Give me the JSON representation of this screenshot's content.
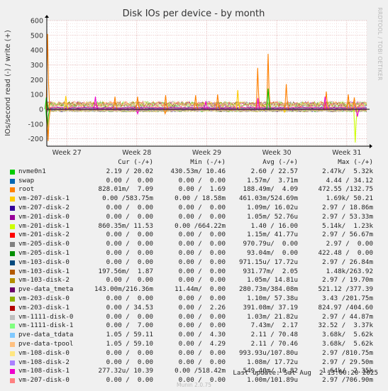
{
  "chart_data": {
    "type": "line",
    "title": "Disk IOs per device - by month",
    "ylabel": "IOs/second read (-) / write (+)",
    "ylim": [
      -250,
      600
    ],
    "yticks": [
      -200,
      -100,
      0,
      100,
      200,
      300,
      400,
      500,
      600
    ],
    "xlim": [
      "2025-07-01",
      "2025-08-02"
    ],
    "xticks": [
      {
        "date": "2025-07-03",
        "label": "Week 27"
      },
      {
        "date": "2025-07-10",
        "label": "Week 28"
      },
      {
        "date": "2025-07-17",
        "label": "Week 29"
      },
      {
        "date": "2025-07-24",
        "label": "Week 30"
      },
      {
        "date": "2025-07-31",
        "label": "Week 31"
      }
    ],
    "grid": true,
    "baseline_colors": [
      "#00cc00",
      "#0066b3",
      "#ff8000",
      "#ffcc00",
      "#330099",
      "#990099",
      "#ccff00",
      "#ff0000",
      "#808080",
      "#008f00",
      "#00487d",
      "#b35a00",
      "#b38f00",
      "#6b006b",
      "#8fb300",
      "#b30000",
      "#bebebe",
      "#80ff80",
      "#80c9ff",
      "#ffc080",
      "#ffe680",
      "#aa80ff",
      "#ee00cc",
      "#ff8080"
    ],
    "spikes": [
      {
        "date": "2025-07-01",
        "value": 510,
        "color": "#ff8000"
      },
      {
        "date": "2025-07-01",
        "value": 80,
        "color": "#00cc00"
      },
      {
        "date": "2025-07-01",
        "value": -150,
        "color": "#00cc00"
      },
      {
        "date": "2025-07-01",
        "value": -215,
        "color": "#ff8000"
      },
      {
        "date": "2025-07-03",
        "value": 90,
        "color": "#ffcc00"
      },
      {
        "date": "2025-07-06",
        "value": 85,
        "color": "#ee00cc"
      },
      {
        "date": "2025-07-08",
        "value": 85,
        "color": "#ff8000"
      },
      {
        "date": "2025-07-10",
        "value": 85,
        "color": "#ff8000"
      },
      {
        "date": "2025-07-10",
        "value": -30,
        "color": "#ee00cc"
      },
      {
        "date": "2025-07-13",
        "value": 95,
        "color": "#ff8000"
      },
      {
        "date": "2025-07-13",
        "value": -30,
        "color": "#ff8000"
      },
      {
        "date": "2025-07-16",
        "value": 95,
        "color": "#ff8000"
      },
      {
        "date": "2025-07-17",
        "value": 55,
        "color": "#ee00cc"
      },
      {
        "date": "2025-07-18",
        "value": 100,
        "color": "#ff8000"
      },
      {
        "date": "2025-07-20",
        "value": 130,
        "color": "#ffcc00"
      },
      {
        "date": "2025-07-22",
        "value": 280,
        "color": "#ff8000"
      },
      {
        "date": "2025-07-22",
        "value": 75,
        "color": "#ee00cc"
      },
      {
        "date": "2025-07-23",
        "value": 375,
        "color": "#ff8000"
      },
      {
        "date": "2025-07-23",
        "value": 140,
        "color": "#00cc00"
      },
      {
        "date": "2025-07-25",
        "value": 170,
        "color": "#ff8000"
      },
      {
        "date": "2025-07-25",
        "value": -20,
        "color": "#ffcc00"
      },
      {
        "date": "2025-07-29",
        "value": 120,
        "color": "#ff8000"
      },
      {
        "date": "2025-07-29",
        "value": 85,
        "color": "#ee00cc"
      },
      {
        "date": "2025-07-31",
        "value": 100,
        "color": "#ff8000"
      },
      {
        "date": "2025-08-01",
        "value": 80,
        "color": "#ff8000"
      },
      {
        "date": "2025-08-01",
        "value": -225,
        "color": "#ccff00"
      },
      {
        "date": "2025-08-01",
        "value": -50,
        "color": "#ee00cc"
      }
    ]
  },
  "side_text": "RRDTOOL / TOBI OETIKER",
  "legend": {
    "headers": {
      "cur": "Cur (-/+)",
      "min": "Min (-/+)",
      "avg": "Avg (-/+)",
      "max": "Max (-/+)"
    },
    "rows": [
      {
        "name": "nvme0n1",
        "color": "#00cc00",
        "cur": "2.19 / 20.02",
        "min": "430.53m/ 10.46",
        "avg": "2.60 / 22.57",
        "max": "2.47k/  5.32k"
      },
      {
        "name": "swap",
        "color": "#0066b3",
        "cur": "0.00 /  0.00",
        "min": "0.00 /  0.00",
        "avg": "1.57m/  3.71m",
        "max": "4.44 / 34.12"
      },
      {
        "name": "root",
        "color": "#ff8000",
        "cur": "828.01m/  7.09",
        "min": "0.00 /  1.69",
        "avg": "188.49m/  4.09",
        "max": "472.55 /132.75"
      },
      {
        "name": "vm-207-disk-1",
        "color": "#ffcc00",
        "cur": "0.00 /583.75m",
        "min": "0.00 / 18.58m",
        "avg": "461.03m/524.69m",
        "max": "1.69k/ 50.21"
      },
      {
        "name": "vm-207-disk-2",
        "color": "#330099",
        "cur": "0.00 /  0.00",
        "min": "0.00 /  0.00",
        "avg": "1.09m/ 16.02u",
        "max": "2.97 / 18.86m"
      },
      {
        "name": "vm-201-disk-0",
        "color": "#990099",
        "cur": "0.00 /  0.00",
        "min": "0.00 /  0.00",
        "avg": "1.05m/ 52.76u",
        "max": "2.97 / 53.33m"
      },
      {
        "name": "vm-201-disk-1",
        "color": "#ccff00",
        "cur": "860.35m/ 11.53",
        "min": "0.00 /664.22m",
        "avg": "1.40 / 16.00",
        "max": "5.14k/  1.23k"
      },
      {
        "name": "vm-201-disk-2",
        "color": "#ff0000",
        "cur": "0.00 /  0.00",
        "min": "0.00 /  0.00",
        "avg": "1.15m/ 41.77u",
        "max": "2.97 / 56.67m"
      },
      {
        "name": "vm-205-disk-0",
        "color": "#808080",
        "cur": "0.00 /  0.00",
        "min": "0.00 /  0.00",
        "avg": "970.79u/  0.00",
        "max": "2.97 /  0.00"
      },
      {
        "name": "vm-205-disk-1",
        "color": "#008f00",
        "cur": "0.00 /  0.00",
        "min": "0.00 /  0.00",
        "avg": "93.04m/  0.00",
        "max": "422.48 /  0.00"
      },
      {
        "name": "vm-103-disk-0",
        "color": "#00487d",
        "cur": "0.00 /  0.00",
        "min": "0.00 /  0.00",
        "avg": "971.15u/ 17.72u",
        "max": "2.97 / 26.84m"
      },
      {
        "name": "vm-103-disk-1",
        "color": "#b35a00",
        "cur": "197.56m/  1.87",
        "min": "0.00 /  0.00",
        "avg": "931.77m/  2.05",
        "max": "1.48k/263.92"
      },
      {
        "name": "vm-103-disk-2",
        "color": "#b38f00",
        "cur": "0.00 /  0.00",
        "min": "0.00 /  0.00",
        "avg": "1.05m/ 14.81u",
        "max": "2.97 / 19.70m"
      },
      {
        "name": "pve-data_tmeta",
        "color": "#6b006b",
        "cur": "143.00m/216.36m",
        "min": "11.44m/  0.00",
        "avg": "280.73m/384.08m",
        "max": "521.12 /377.39"
      },
      {
        "name": "vm-203-disk-0",
        "color": "#8fb300",
        "cur": "0.00 /  0.00",
        "min": "0.00 /  0.00",
        "avg": "1.10m/ 57.38u",
        "max": "3.43 /201.75m"
      },
      {
        "name": "vm-203-disk-1",
        "color": "#b30000",
        "cur": "0.00 / 34.53",
        "min": "0.00 /  2.26",
        "avg": "391.08m/ 37.19",
        "max": "824.97 /404.60"
      },
      {
        "name": "vm-1111-disk-0",
        "color": "#bebebe",
        "cur": "0.00 /  0.00",
        "min": "0.00 /  0.00",
        "avg": "1.03m/ 21.82u",
        "max": "2.97 / 44.87m"
      },
      {
        "name": "vm-1111-disk-1",
        "color": "#80ff80",
        "cur": "0.00 /  7.00",
        "min": "0.00 /  0.00",
        "avg": "7.43m/  2.17",
        "max": "32.52 /  3.37k"
      },
      {
        "name": "pve-data_tdata",
        "color": "#80c9ff",
        "cur": "1.05 / 59.11",
        "min": "0.00 /  4.30",
        "avg": "2.11 / 70.48",
        "max": "3.68k/  5.62k"
      },
      {
        "name": "pve-data-tpool",
        "color": "#ffc080",
        "cur": "1.05 / 59.10",
        "min": "0.00 /  4.29",
        "avg": "2.11 / 70.46",
        "max": "3.68k/  5.62k"
      },
      {
        "name": "vm-108-disk-0",
        "color": "#ffe680",
        "cur": "0.00 /  0.00",
        "min": "0.00 /  0.00",
        "avg": "993.93u/107.80u",
        "max": "2.97 /810.75m"
      },
      {
        "name": "vm-108-disk-2",
        "color": "#aa80ff",
        "cur": "0.00 /  0.00",
        "min": "0.00 /  0.00",
        "avg": "1.08m/ 17.72u",
        "max": "2.97 / 29.50m"
      },
      {
        "name": "vm-108-disk-1",
        "color": "#ee00cc",
        "cur": "277.32u/ 10.39",
        "min": "0.00 /518.42m",
        "avg": "549.40m/ 10.82",
        "max": "1.64k/  2.35k"
      },
      {
        "name": "vm-207-disk-0",
        "color": "#ff8080",
        "cur": "0.00 /  0.00",
        "min": "0.00 /  0.00",
        "avg": "1.00m/101.89u",
        "max": "2.97 /706.90m"
      }
    ]
  },
  "last_update": "Last update: Sat Aug  2 13:00:20 2025",
  "footer": "Munin 2.0.75"
}
